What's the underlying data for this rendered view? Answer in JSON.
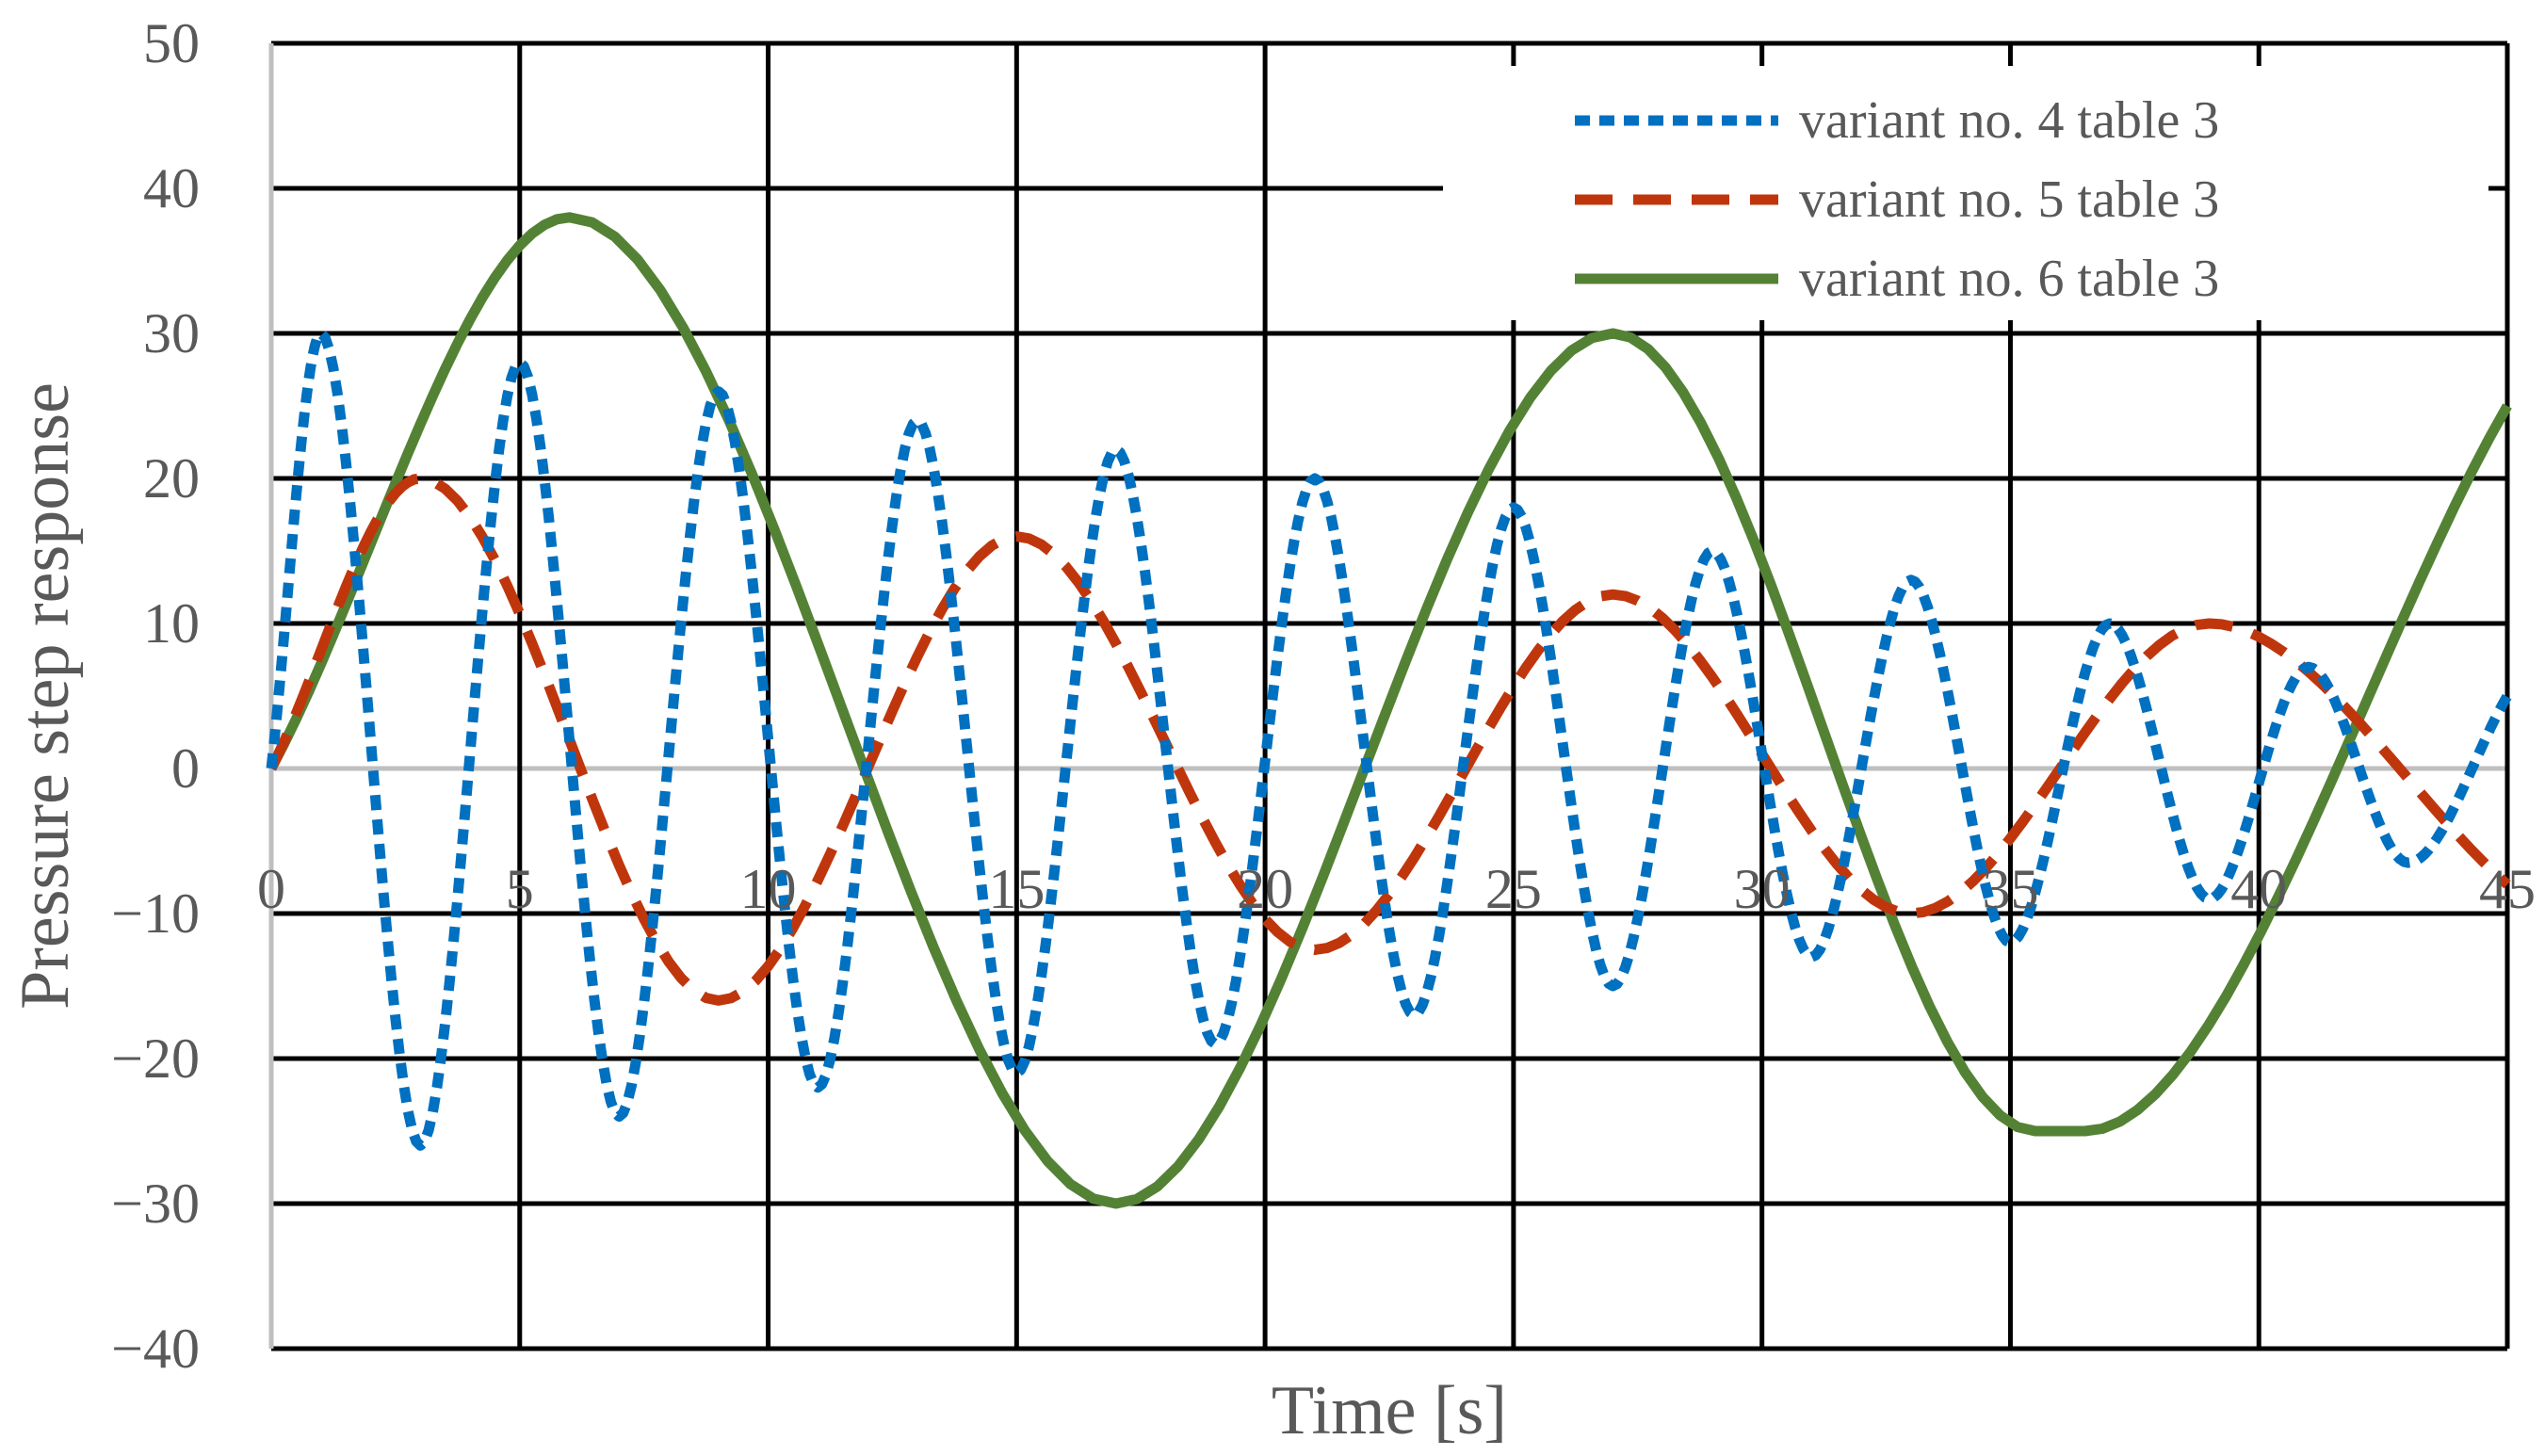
{
  "chart_data": {
    "type": "line",
    "title": "",
    "xlabel": "Time [s]",
    "ylabel": "Pressure step response",
    "xlim": [
      0,
      45
    ],
    "ylim": [
      -40,
      50
    ],
    "xticks": [
      0,
      5,
      10,
      15,
      20,
      25,
      30,
      35,
      40,
      45
    ],
    "yticks": [
      50,
      40,
      30,
      20,
      10,
      0,
      -10,
      -20,
      -30,
      -40
    ],
    "xtick_labels": [
      "0",
      "5",
      "10",
      "15",
      "20",
      "25",
      "30",
      "35",
      "40",
      "45"
    ],
    "ytick_labels": [
      "50",
      "40",
      "30",
      "20",
      "10",
      "0",
      "−10",
      "−20",
      "−30",
      "−40"
    ],
    "grid": true,
    "legend_position": "top-right",
    "series": [
      {
        "name": "variant no. 4 table 3",
        "color": "#0070C0",
        "style": "dotted",
        "x": [
          0,
          1,
          3,
          5,
          7,
          9,
          11,
          13,
          15,
          17,
          19,
          21,
          23,
          25,
          27,
          29,
          31,
          33,
          35,
          37,
          39,
          41,
          43,
          45
        ],
        "y": [
          0,
          30,
          -26,
          28,
          -24,
          26,
          -22,
          24,
          -21,
          22,
          -19,
          20,
          -17,
          18,
          -15,
          15,
          -13,
          13,
          -12,
          10,
          -9,
          7,
          -6.5,
          5
        ]
      },
      {
        "name": "variant no. 5 table 3",
        "color": "#C0360C",
        "style": "dashed",
        "x": [
          0,
          3,
          9,
          15,
          21,
          27,
          33,
          39,
          45
        ],
        "y": [
          0,
          20,
          -16,
          16,
          -12.5,
          12,
          -10,
          10,
          -8
        ]
      },
      {
        "name": "variant no. 6 table 3",
        "color": "#548235",
        "style": "solid",
        "x": [
          0,
          6,
          17,
          27,
          35.5,
          36.5,
          45
        ],
        "y": [
          0,
          38,
          -30,
          30,
          -25,
          -25,
          25
        ]
      }
    ]
  }
}
